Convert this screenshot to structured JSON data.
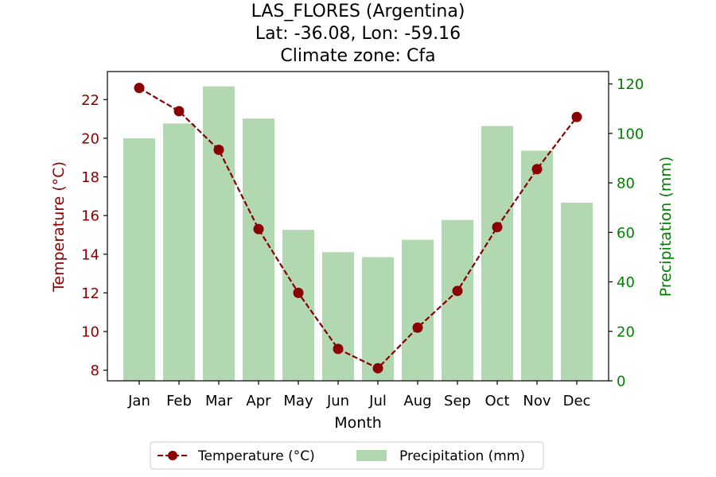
{
  "chart_data": {
    "type": "bar+line",
    "title_lines": [
      "LAS_FLORES (Argentina)",
      "Lat: -36.08, Lon: -59.16",
      "Climate zone: Cfa"
    ],
    "xlabel": "Month",
    "categories": [
      "Jan",
      "Feb",
      "Mar",
      "Apr",
      "May",
      "Jun",
      "Jul",
      "Aug",
      "Sep",
      "Oct",
      "Nov",
      "Dec"
    ],
    "left_axis": {
      "label": "Temperature (°C)",
      "color": "#8b0000",
      "ylim": [
        7.45,
        23.45
      ],
      "ticks": [
        8,
        10,
        12,
        14,
        16,
        18,
        20,
        22
      ]
    },
    "right_axis": {
      "label": "Precipitation (mm)",
      "color": "#008000",
      "ylim": [
        0,
        125
      ],
      "ticks": [
        0,
        20,
        40,
        60,
        80,
        100,
        120
      ]
    },
    "series": [
      {
        "name": "Temperature (°C)",
        "type": "line",
        "axis": "left",
        "color": "#8b0000",
        "line_style": "dashed",
        "marker": "circle",
        "values": [
          22.6,
          21.4,
          19.4,
          15.3,
          12.0,
          9.1,
          8.1,
          10.2,
          12.1,
          15.4,
          18.4,
          21.1
        ]
      },
      {
        "name": "Precipitation (mm)",
        "type": "bar",
        "axis": "right",
        "color": "#b2d8b2",
        "values": [
          98,
          104,
          119,
          106,
          61,
          52,
          50,
          57,
          65,
          103,
          93,
          72
        ]
      }
    ],
    "legend_position": "bottom-center",
    "grid": false
  }
}
